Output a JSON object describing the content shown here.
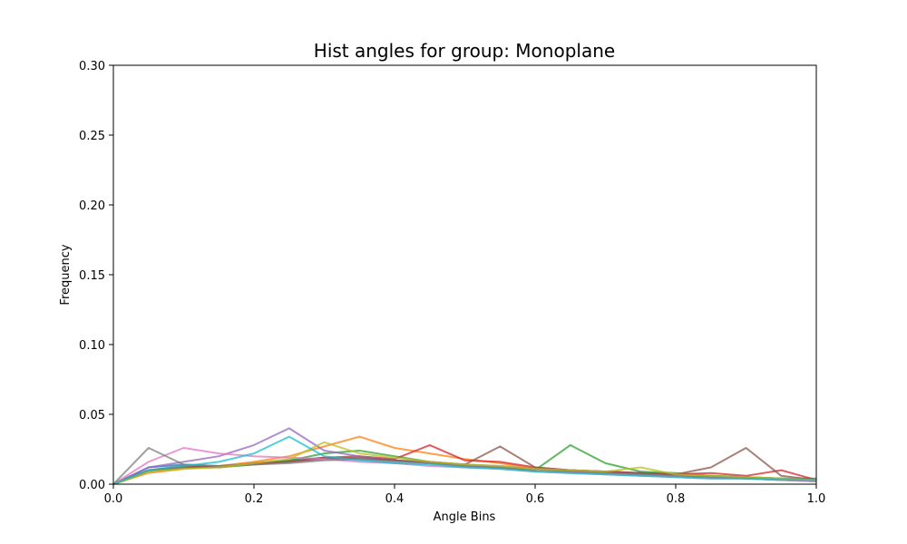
{
  "chart_data": {
    "type": "line",
    "title": "Hist angles for group: Monoplane",
    "xlabel": "Angle Bins",
    "ylabel": "Frequency",
    "xlim": [
      0.0,
      1.0
    ],
    "ylim": [
      0.0,
      0.3
    ],
    "xticks": [
      "0.0",
      "0.2",
      "0.4",
      "0.6",
      "0.8",
      "1.0"
    ],
    "yticks": [
      "0.00",
      "0.05",
      "0.10",
      "0.15",
      "0.20",
      "0.25",
      "0.30"
    ],
    "grid": false,
    "series": [
      {
        "color": "#1f77b4",
        "x": [
          0.0,
          0.05,
          0.1,
          0.15,
          0.2,
          0.25,
          0.3,
          0.35,
          0.4,
          0.45,
          0.5,
          0.55,
          0.6,
          0.65,
          0.7,
          0.75,
          0.8,
          0.85,
          0.9,
          0.95,
          1.0
        ],
        "values": [
          0.0,
          0.012,
          0.014,
          0.013,
          0.015,
          0.017,
          0.019,
          0.018,
          0.017,
          0.015,
          0.013,
          0.012,
          0.011,
          0.01,
          0.009,
          0.008,
          0.007,
          0.006,
          0.005,
          0.004,
          0.003
        ]
      },
      {
        "color": "#ff7f0e",
        "x": [
          0.0,
          0.05,
          0.1,
          0.15,
          0.2,
          0.25,
          0.3,
          0.35,
          0.4,
          0.45,
          0.5,
          0.55,
          0.6,
          0.65,
          0.7,
          0.75,
          0.8,
          0.85,
          0.9,
          0.95,
          1.0
        ],
        "values": [
          0.0,
          0.008,
          0.011,
          0.013,
          0.016,
          0.02,
          0.027,
          0.034,
          0.026,
          0.022,
          0.018,
          0.015,
          0.011,
          0.009,
          0.008,
          0.007,
          0.006,
          0.005,
          0.004,
          0.003,
          0.002
        ]
      },
      {
        "color": "#2ca02c",
        "x": [
          0.0,
          0.05,
          0.1,
          0.15,
          0.2,
          0.25,
          0.3,
          0.35,
          0.4,
          0.45,
          0.5,
          0.55,
          0.6,
          0.65,
          0.7,
          0.75,
          0.8,
          0.85,
          0.9,
          0.95,
          1.0
        ],
        "values": [
          0.0,
          0.009,
          0.012,
          0.012,
          0.014,
          0.017,
          0.022,
          0.024,
          0.02,
          0.016,
          0.014,
          0.012,
          0.01,
          0.028,
          0.015,
          0.009,
          0.008,
          0.006,
          0.005,
          0.004,
          0.004
        ]
      },
      {
        "color": "#d62728",
        "x": [
          0.0,
          0.05,
          0.1,
          0.15,
          0.2,
          0.25,
          0.3,
          0.35,
          0.4,
          0.45,
          0.5,
          0.55,
          0.6,
          0.65,
          0.7,
          0.75,
          0.8,
          0.85,
          0.9,
          0.95,
          1.0
        ],
        "values": [
          0.0,
          0.01,
          0.013,
          0.012,
          0.015,
          0.016,
          0.019,
          0.02,
          0.018,
          0.028,
          0.017,
          0.016,
          0.012,
          0.01,
          0.009,
          0.008,
          0.007,
          0.008,
          0.006,
          0.01,
          0.003
        ]
      },
      {
        "color": "#9467bd",
        "x": [
          0.0,
          0.05,
          0.1,
          0.15,
          0.2,
          0.25,
          0.3,
          0.35,
          0.4,
          0.45,
          0.5,
          0.55,
          0.6,
          0.65,
          0.7,
          0.75,
          0.8,
          0.85,
          0.9,
          0.95,
          1.0
        ],
        "values": [
          0.0,
          0.012,
          0.016,
          0.02,
          0.028,
          0.04,
          0.024,
          0.02,
          0.017,
          0.015,
          0.014,
          0.013,
          0.011,
          0.009,
          0.008,
          0.007,
          0.006,
          0.005,
          0.004,
          0.003,
          0.002
        ]
      },
      {
        "color": "#8c564b",
        "x": [
          0.0,
          0.05,
          0.1,
          0.15,
          0.2,
          0.25,
          0.3,
          0.35,
          0.4,
          0.45,
          0.5,
          0.55,
          0.6,
          0.65,
          0.7,
          0.75,
          0.8,
          0.85,
          0.9,
          0.95,
          1.0
        ],
        "values": [
          0.0,
          0.01,
          0.012,
          0.013,
          0.014,
          0.016,
          0.018,
          0.019,
          0.017,
          0.016,
          0.014,
          0.027,
          0.012,
          0.01,
          0.009,
          0.008,
          0.007,
          0.012,
          0.026,
          0.006,
          0.003
        ]
      },
      {
        "color": "#e377c2",
        "x": [
          0.0,
          0.05,
          0.1,
          0.15,
          0.2,
          0.25,
          0.3,
          0.35,
          0.4,
          0.45,
          0.5,
          0.55,
          0.6,
          0.65,
          0.7,
          0.75,
          0.8,
          0.85,
          0.9,
          0.95,
          1.0
        ],
        "values": [
          0.0,
          0.016,
          0.026,
          0.022,
          0.02,
          0.019,
          0.018,
          0.016,
          0.015,
          0.013,
          0.012,
          0.011,
          0.009,
          0.008,
          0.007,
          0.006,
          0.005,
          0.004,
          0.004,
          0.003,
          0.002
        ]
      },
      {
        "color": "#7f7f7f",
        "x": [
          0.0,
          0.05,
          0.1,
          0.15,
          0.2,
          0.25,
          0.3,
          0.35,
          0.4,
          0.45,
          0.5,
          0.55,
          0.6,
          0.65,
          0.7,
          0.75,
          0.8,
          0.85,
          0.9,
          0.95,
          1.0
        ],
        "values": [
          0.0,
          0.026,
          0.014,
          0.013,
          0.014,
          0.015,
          0.017,
          0.018,
          0.016,
          0.015,
          0.013,
          0.012,
          0.01,
          0.009,
          0.008,
          0.007,
          0.006,
          0.005,
          0.004,
          0.004,
          0.003
        ]
      },
      {
        "color": "#bcbd22",
        "x": [
          0.0,
          0.05,
          0.1,
          0.15,
          0.2,
          0.25,
          0.3,
          0.35,
          0.4,
          0.45,
          0.5,
          0.55,
          0.6,
          0.65,
          0.7,
          0.75,
          0.8,
          0.85,
          0.9,
          0.95,
          1.0
        ],
        "values": [
          0.0,
          0.009,
          0.011,
          0.012,
          0.015,
          0.018,
          0.03,
          0.022,
          0.019,
          0.016,
          0.014,
          0.013,
          0.011,
          0.01,
          0.009,
          0.012,
          0.007,
          0.006,
          0.005,
          0.004,
          0.003
        ]
      },
      {
        "color": "#17becf",
        "x": [
          0.0,
          0.05,
          0.1,
          0.15,
          0.2,
          0.25,
          0.3,
          0.35,
          0.4,
          0.45,
          0.5,
          0.55,
          0.6,
          0.65,
          0.7,
          0.75,
          0.8,
          0.85,
          0.9,
          0.95,
          1.0
        ],
        "values": [
          0.0,
          0.01,
          0.013,
          0.016,
          0.022,
          0.034,
          0.02,
          0.017,
          0.015,
          0.014,
          0.012,
          0.011,
          0.009,
          0.008,
          0.007,
          0.006,
          0.005,
          0.004,
          0.004,
          0.003,
          0.003
        ]
      }
    ]
  }
}
